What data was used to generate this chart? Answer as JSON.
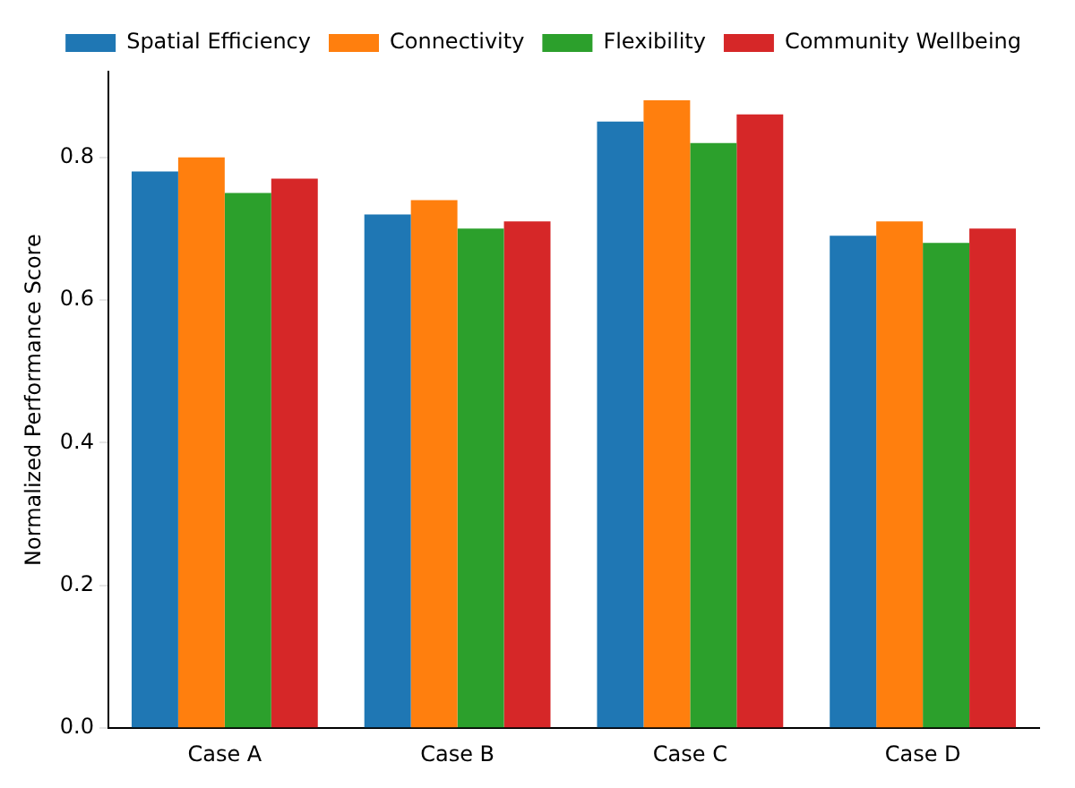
{
  "chart_data": {
    "type": "bar",
    "ylabel": "Normalized Performance Score",
    "categories": [
      "Case A",
      "Case B",
      "Case C",
      "Case D"
    ],
    "series": [
      {
        "name": "Spatial Efficiency",
        "color": "#1f77b4",
        "values": [
          0.78,
          0.72,
          0.85,
          0.69
        ]
      },
      {
        "name": "Connectivity",
        "color": "#ff7f0e",
        "values": [
          0.8,
          0.74,
          0.88,
          0.71
        ]
      },
      {
        "name": "Flexibility",
        "color": "#2ca02c",
        "values": [
          0.75,
          0.7,
          0.82,
          0.68
        ]
      },
      {
        "name": "Community Wellbeing",
        "color": "#d62728",
        "values": [
          0.77,
          0.71,
          0.86,
          0.7
        ]
      }
    ],
    "ylim": [
      0,
      0.92
    ],
    "yticks": [
      {
        "value": 0,
        "label": "0.0"
      },
      {
        "value": 0.2,
        "label": "0.2"
      },
      {
        "value": 0.4,
        "label": "0.4"
      },
      {
        "value": 0.6,
        "label": "0.6"
      },
      {
        "value": 0.8,
        "label": "0.8"
      }
    ],
    "grid": false,
    "legend": "top right"
  }
}
